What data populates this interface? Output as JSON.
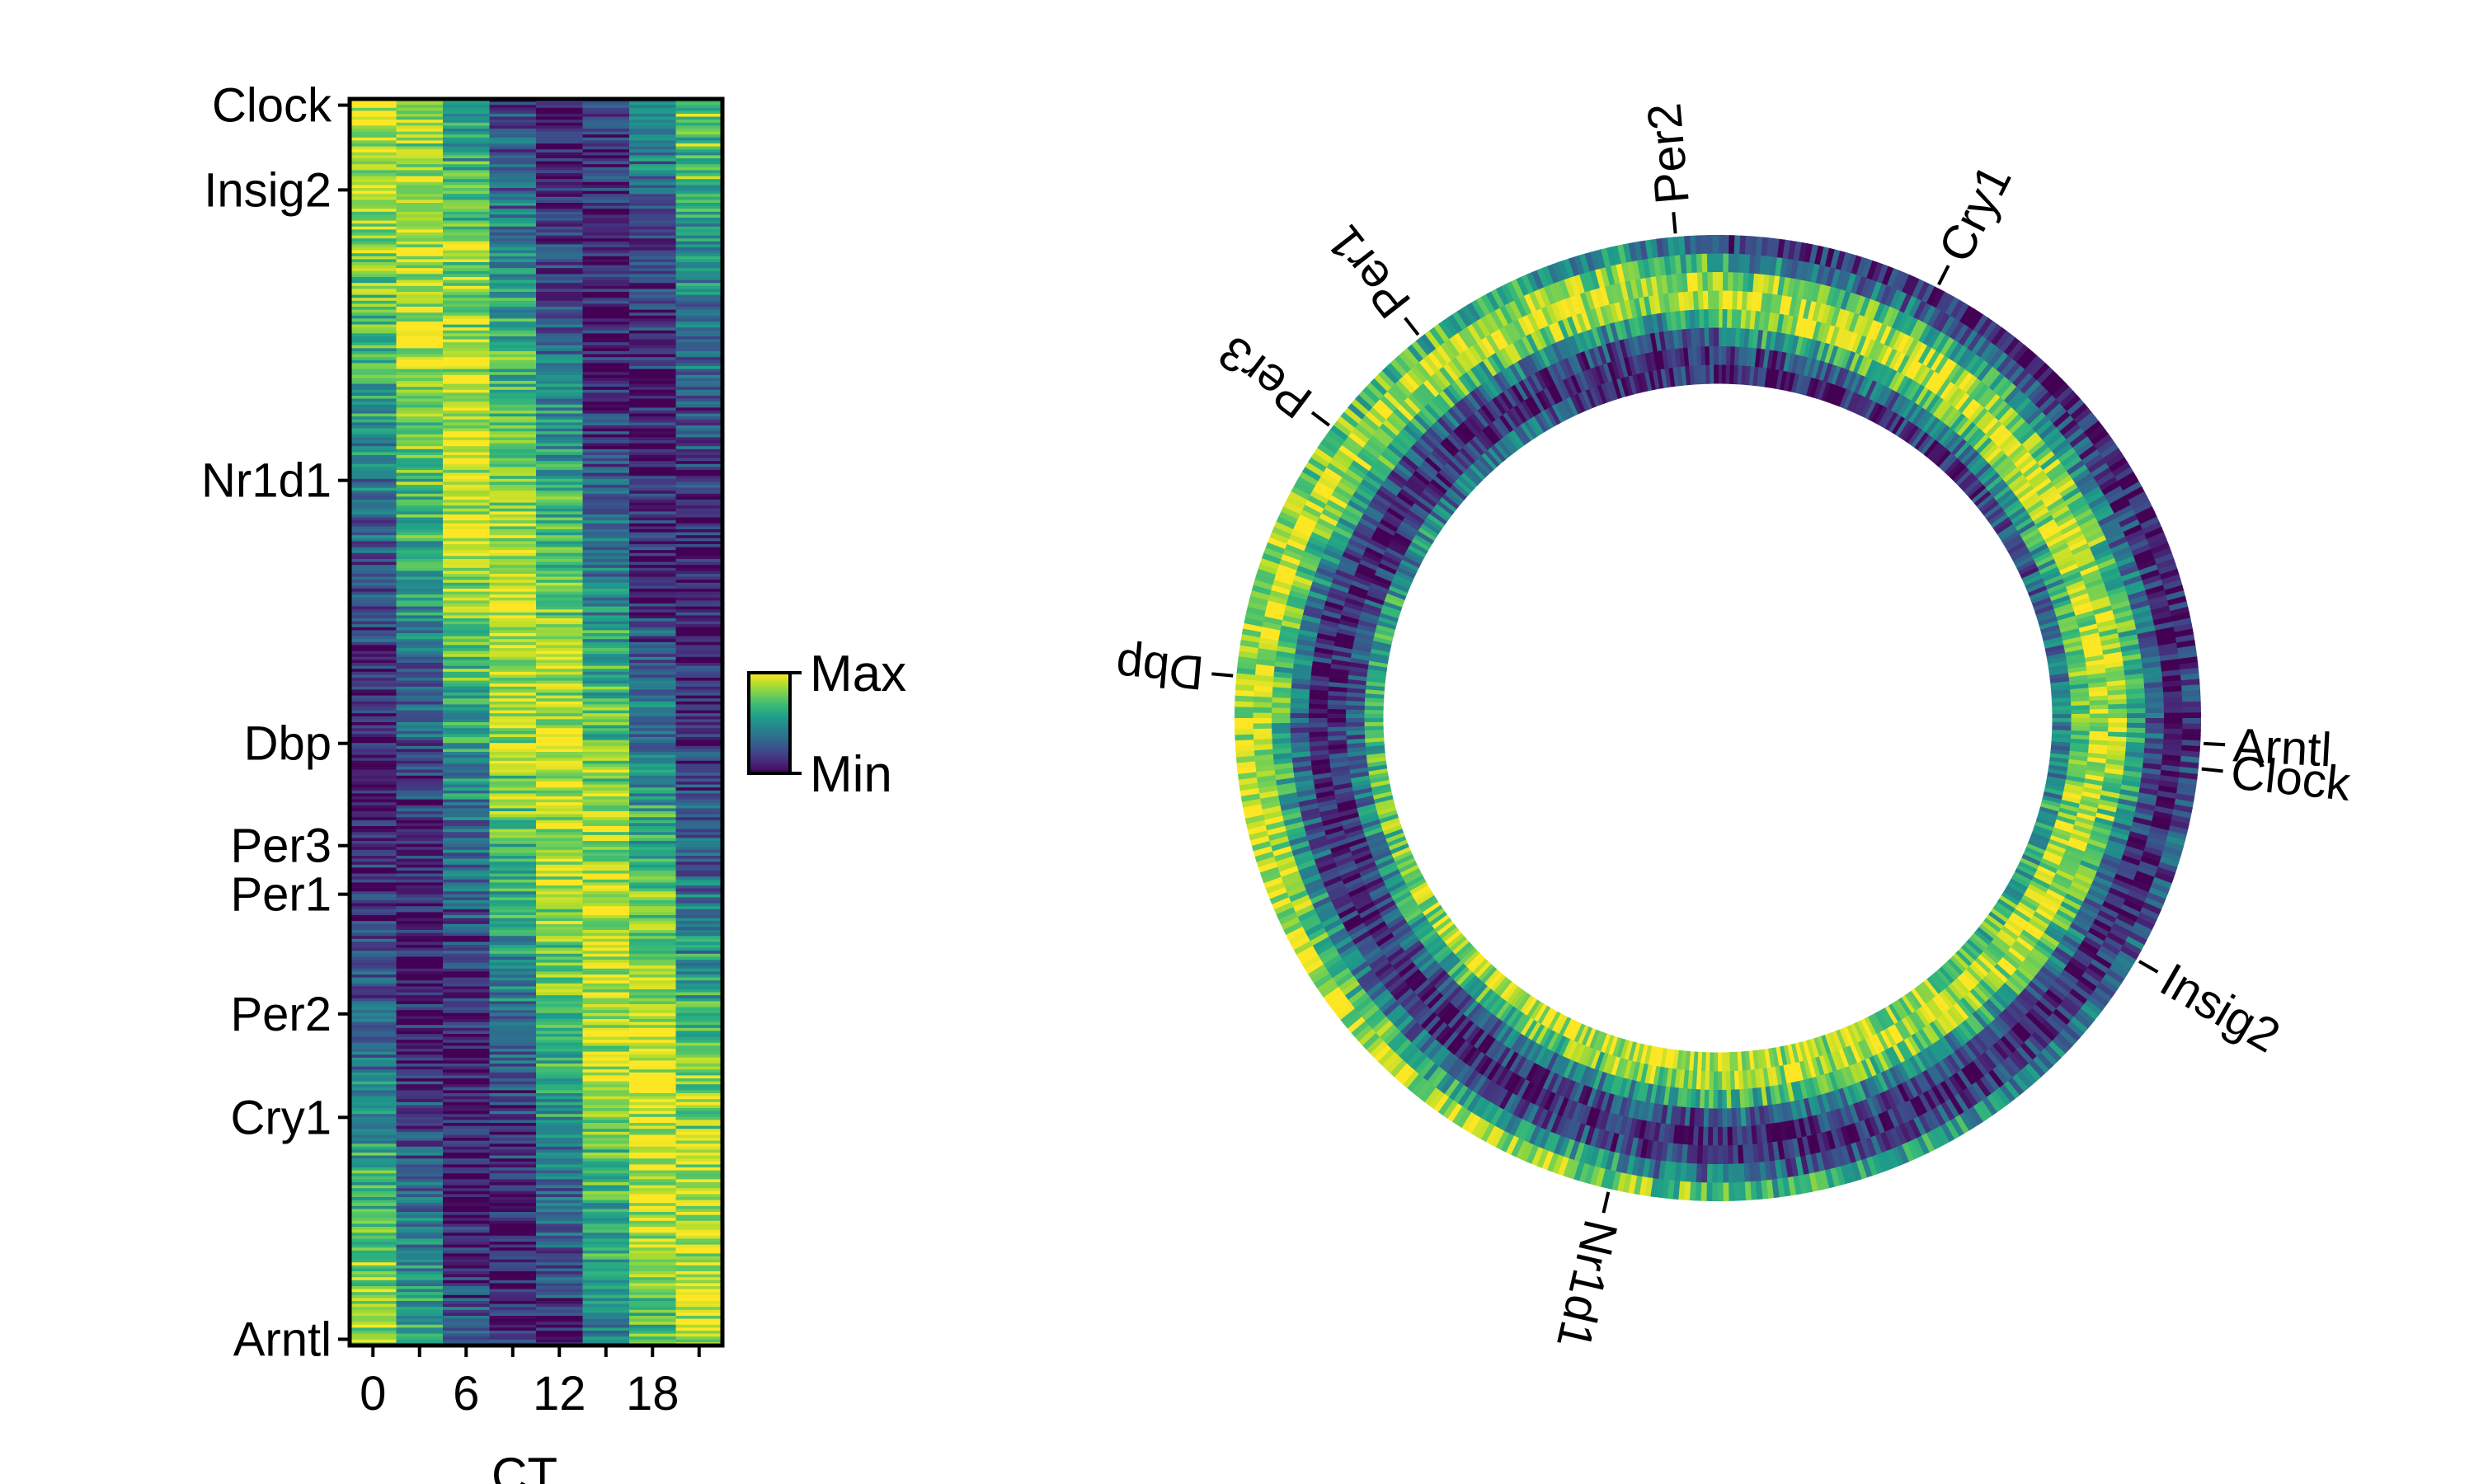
{
  "colors": {
    "viridis": [
      "#440154",
      "#482878",
      "#3e4989",
      "#31688e",
      "#26828e",
      "#1f9e89",
      "#35b779",
      "#6ece58",
      "#b5de2b",
      "#fde725"
    ],
    "frame": "#000000"
  },
  "chart_data": [
    {
      "type": "heatmap",
      "xlabel": "CT",
      "ylabel": "",
      "x_ticks": [
        0,
        6,
        12,
        18
      ],
      "x_tick_labels": [
        "0",
        "6",
        "12",
        "18"
      ],
      "columns_ct": [
        0,
        3,
        6,
        9,
        12,
        15,
        18,
        21
      ],
      "xlim": [
        -1.5,
        22.5
      ],
      "gene_order": "sorted by peak phase",
      "row_count": 2000,
      "labeled_genes": [
        {
          "name": "Clock",
          "row_fraction": 0.005
        },
        {
          "name": "Insig2",
          "row_fraction": 0.073
        },
        {
          "name": "Nr1d1",
          "row_fraction": 0.306
        },
        {
          "name": "Dbp",
          "row_fraction": 0.517
        },
        {
          "name": "Per3",
          "row_fraction": 0.599
        },
        {
          "name": "Per1",
          "row_fraction": 0.638
        },
        {
          "name": "Per2",
          "row_fraction": 0.734
        },
        {
          "name": "Cry1",
          "row_fraction": 0.817
        },
        {
          "name": "Arntl",
          "row_fraction": 0.995
        }
      ],
      "colorbar": {
        "max_label": "Max",
        "min_label": "Min",
        "colormap": "viridis"
      }
    },
    {
      "type": "heatmap",
      "layout": "circular",
      "rings_ct": [
        0,
        3,
        6,
        9,
        12,
        15,
        18,
        21
      ],
      "ring_order": "outer to inner",
      "gene_order": "by peak phase, clockwise",
      "labeled_genes": [
        {
          "name": "Per2",
          "angle_deg": 355
        },
        {
          "name": "Cry1",
          "angle_deg": 27
        },
        {
          "name": "Per1",
          "angle_deg": 322
        },
        {
          "name": "Per3",
          "angle_deg": 307
        },
        {
          "name": "Dbp",
          "angle_deg": 275
        },
        {
          "name": "Arntl",
          "angle_deg": 93
        },
        {
          "name": "Clock",
          "angle_deg": 96
        },
        {
          "name": "Insig2",
          "angle_deg": 120
        },
        {
          "name": "Nr1d1",
          "angle_deg": 193
        }
      ]
    }
  ]
}
